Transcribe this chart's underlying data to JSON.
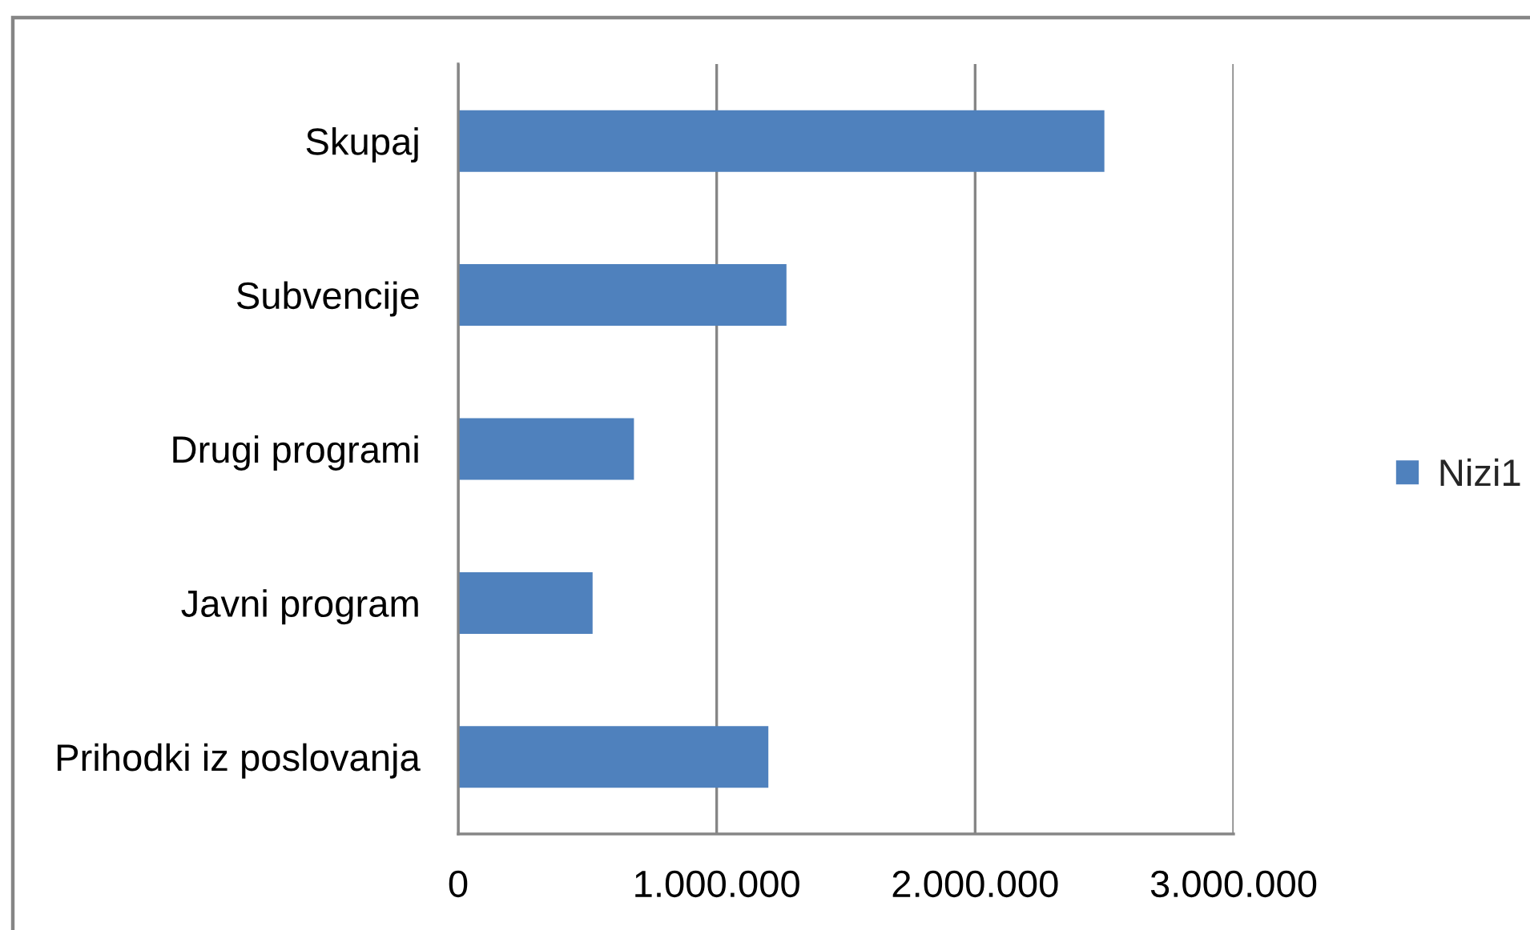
{
  "chart_data": {
    "type": "bar",
    "orientation": "horizontal",
    "categories": [
      "Skupaj",
      "Subvencije",
      "Drugi programi",
      "Javni program",
      "Prihodki iz poslovanja"
    ],
    "series": [
      {
        "name": "Nizi1",
        "color": "#4f81bd",
        "values": [
          2500000,
          1270000,
          680000,
          520000,
          1200000
        ]
      }
    ],
    "xlim": [
      0,
      3000000
    ],
    "xticks": [
      0,
      {
        "value": 1000000,
        "label": "1.000.000"
      },
      {
        "value": 2000000,
        "label": "2.000.000"
      },
      {
        "value": 3000000,
        "label": "3.000.000"
      }
    ],
    "grid": "x",
    "legend": "right"
  }
}
